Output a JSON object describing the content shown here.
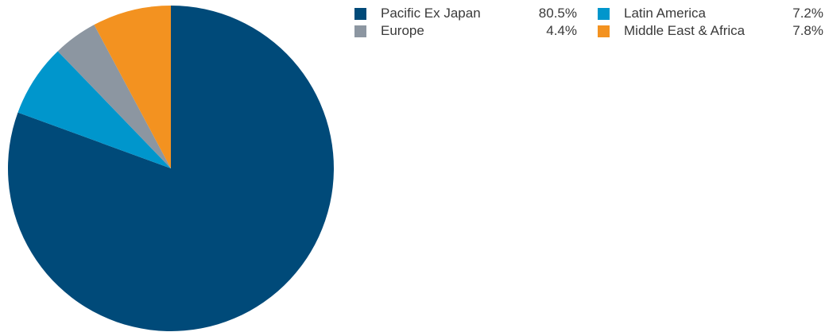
{
  "chart_data": {
    "type": "pie",
    "title": "",
    "slices": [
      {
        "label": "Pacific Ex Japan",
        "value": 80.5,
        "display": "80.5%",
        "color": "#004a79"
      },
      {
        "label": "Latin America",
        "value": 7.2,
        "display": "7.2%",
        "color": "#0096cc"
      },
      {
        "label": "Europe",
        "value": 4.4,
        "display": "4.4%",
        "color": "#8c96a1"
      },
      {
        "label": "Middle East & Africa",
        "value": 7.8,
        "display": "7.8%",
        "color": "#f39220"
      }
    ],
    "legend_position": "top-right",
    "slice_order": "clockwise from 12 o'clock: Pacific Ex Japan, Latin America, Europe, Middle East & Africa"
  }
}
